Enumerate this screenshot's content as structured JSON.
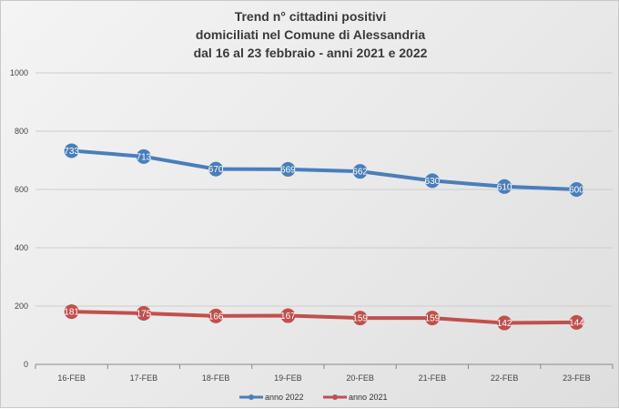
{
  "chart_data": {
    "type": "line",
    "title_lines": [
      "Trend n° cittadini positivi",
      "domiciliati nel Comune di Alessandria",
      "dal 16 al 23 febbraio - anni 2021 e 2022"
    ],
    "categories": [
      "16-FEB",
      "17-FEB",
      "18-FEB",
      "19-FEB",
      "20-FEB",
      "21-FEB",
      "22-FEB",
      "23-FEB"
    ],
    "series": [
      {
        "name": "anno 2022",
        "color": "#4a7ebb",
        "values": [
          733,
          713,
          670,
          669,
          662,
          630,
          610,
          600
        ],
        "labels": [
          "733",
          "713",
          "670",
          "669",
          "662",
          "630",
          "610",
          "600"
        ]
      },
      {
        "name": "anno 2021",
        "color": "#c0504d",
        "values": [
          181,
          175,
          166,
          167,
          159,
          159,
          142,
          144
        ],
        "labels": [
          "181",
          "175",
          "166",
          "167",
          "159",
          "159",
          "142",
          "144"
        ]
      }
    ],
    "yticks": [
      "0",
      "200",
      "400",
      "600",
      "800",
      "1000"
    ],
    "ylim": [
      0,
      1000
    ],
    "grid": true,
    "legend_position": "bottom"
  }
}
